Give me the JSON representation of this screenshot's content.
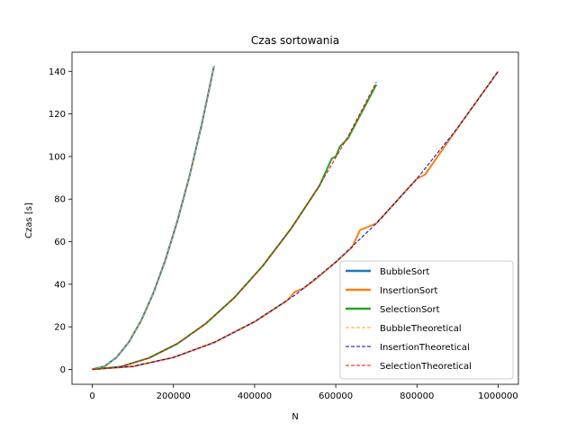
{
  "chart_data": {
    "type": "line",
    "title": "Czas sortowania",
    "xlabel": "N",
    "ylabel": "Czas [s]",
    "xlim": [
      -50000,
      1050000
    ],
    "ylim": [
      -7,
      149
    ],
    "xticks": [
      0,
      200000,
      400000,
      600000,
      800000,
      1000000
    ],
    "xtick_labels": [
      "0",
      "200000",
      "400000",
      "600000",
      "800000",
      "1000000"
    ],
    "yticks": [
      0,
      20,
      40,
      60,
      80,
      100,
      120,
      140
    ],
    "ytick_labels": [
      "0",
      "20",
      "40",
      "60",
      "80",
      "100",
      "120",
      "140"
    ],
    "grid": false,
    "legend_position": "lower-right",
    "series": [
      {
        "name": "BubbleSort",
        "color": "#1f77b4",
        "style": "solid",
        "x": [
          0,
          30000,
          60000,
          90000,
          120000,
          150000,
          180000,
          210000,
          240000,
          270000,
          300000
        ],
        "y": [
          0,
          1.4,
          5.7,
          12.8,
          22.8,
          35.6,
          51.3,
          69.8,
          91.2,
          115.4,
          142.5
        ]
      },
      {
        "name": "InsertionSort",
        "color": "#ff7f0e",
        "style": "solid",
        "x": [
          0,
          100000,
          200000,
          300000,
          400000,
          480000,
          500000,
          520000,
          550000,
          600000,
          640000,
          660000,
          680000,
          700000,
          800000,
          810000,
          820000,
          900000,
          1000000
        ],
        "y": [
          0,
          1.4,
          5.6,
          12.6,
          22.4,
          32.3,
          36.5,
          38.0,
          42.3,
          50.4,
          57.3,
          65.5,
          67.0,
          68.6,
          89.6,
          90.5,
          91.5,
          113.4,
          140.0
        ]
      },
      {
        "name": "SelectionSort",
        "color": "#2ca02c",
        "style": "solid",
        "x": [
          0,
          70000,
          140000,
          210000,
          280000,
          350000,
          420000,
          490000,
          560000,
          590000,
          600000,
          610000,
          630000,
          700000
        ],
        "y": [
          0,
          1.3,
          5.4,
          12.1,
          21.6,
          33.7,
          48.6,
          66.2,
          86.4,
          99.0,
          100.0,
          104.6,
          108.5,
          133.8
        ]
      },
      {
        "name": "BubbleTheoretical",
        "color": "#ffa500",
        "style": "dashed",
        "x": [
          0,
          30000,
          60000,
          90000,
          120000,
          150000,
          180000,
          210000,
          240000,
          270000,
          300000
        ],
        "y": [
          0,
          1.4,
          5.7,
          12.8,
          22.8,
          35.6,
          51.3,
          69.8,
          91.2,
          115.4,
          142.5
        ]
      },
      {
        "name": "InsertionTheoretical",
        "color": "#0000cd",
        "style": "dashed",
        "x": [
          0,
          100000,
          200000,
          300000,
          400000,
          500000,
          600000,
          700000,
          800000,
          900000,
          1000000
        ],
        "y": [
          0,
          1.4,
          5.6,
          12.6,
          22.4,
          35.0,
          50.4,
          68.6,
          89.6,
          113.4,
          140.0
        ]
      },
      {
        "name": "SelectionTheoretical",
        "color": "#ff0000",
        "style": "dashed",
        "x": [
          0,
          70000,
          140000,
          210000,
          280000,
          350000,
          420000,
          490000,
          560000,
          630000,
          700000
        ],
        "y": [
          0,
          1.3,
          5.4,
          12.1,
          21.6,
          33.7,
          48.6,
          66.2,
          86.4,
          109.4,
          135.0
        ]
      }
    ]
  }
}
